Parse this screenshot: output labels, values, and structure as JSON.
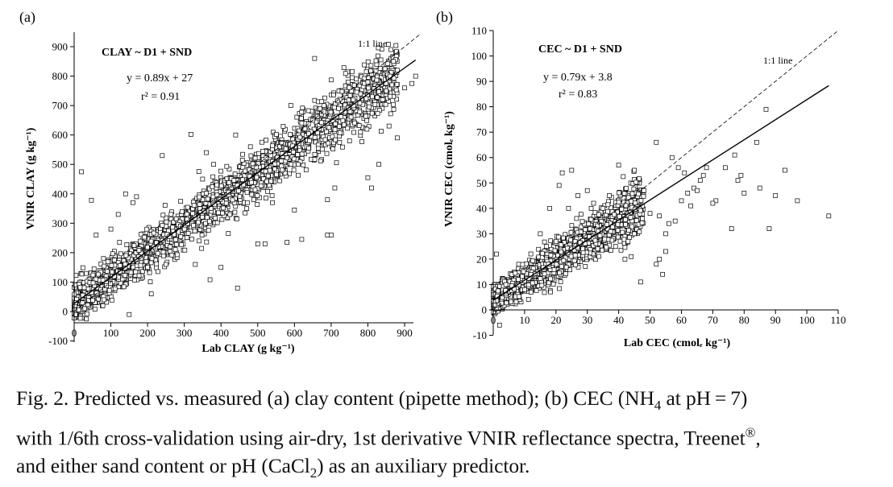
{
  "chart_data": [
    {
      "type": "scatter",
      "panel_label": "(a)",
      "title": "CLAY ~ D1 + SND",
      "xlabel": "Lab CLAY (g kg⁻¹)",
      "ylabel": "VNIR CLAY (g kg⁻¹)",
      "xlim": [
        0,
        940
      ],
      "ylim": [
        -100,
        960
      ],
      "xticks": [
        0,
        100,
        200,
        300,
        400,
        500,
        600,
        700,
        800,
        900
      ],
      "yticks": [
        -100,
        0,
        100,
        200,
        300,
        400,
        500,
        600,
        700,
        800,
        900
      ],
      "equation": "y = 0.89x + 27",
      "r2": "r² = 0.91",
      "fit": {
        "slope": 0.89,
        "intercept": 27,
        "x_range": [
          0,
          930
        ]
      },
      "one_to_one_label": "1:1 line",
      "one_to_one_range": [
        0,
        940
      ],
      "cloud": {
        "x_max": 880,
        "spread": 50,
        "count": 2300
      },
      "outliers": [
        [
          20,
          475
        ],
        [
          47,
          378
        ],
        [
          140,
          400
        ],
        [
          170,
          390
        ],
        [
          160,
          370
        ],
        [
          240,
          530
        ],
        [
          318,
          602
        ],
        [
          360,
          540
        ],
        [
          445,
          80
        ],
        [
          400,
          150
        ],
        [
          330,
          160
        ],
        [
          370,
          108
        ],
        [
          300,
          280
        ],
        [
          260,
          255
        ],
        [
          500,
          230
        ],
        [
          520,
          230
        ],
        [
          580,
          235
        ],
        [
          620,
          245
        ],
        [
          655,
          860
        ],
        [
          690,
          260
        ],
        [
          700,
          260
        ],
        [
          800,
          455
        ],
        [
          810,
          420
        ],
        [
          830,
          500
        ],
        [
          880,
          590
        ],
        [
          900,
          760
        ],
        [
          930,
          800
        ],
        [
          920,
          775
        ],
        [
          870,
          850
        ],
        [
          600,
          345
        ],
        [
          540,
          370
        ],
        [
          610,
          500
        ],
        [
          750,
          580
        ],
        [
          780,
          610
        ],
        [
          840,
          720
        ],
        [
          850,
          750
        ],
        [
          470,
          350
        ],
        [
          420,
          265
        ],
        [
          690,
          380
        ],
        [
          710,
          420
        ],
        [
          60,
          260
        ],
        [
          80,
          180
        ],
        [
          120,
          330
        ],
        [
          100,
          280
        ],
        [
          200,
          150
        ],
        [
          210,
          60
        ],
        [
          150,
          -10
        ],
        [
          250,
          160
        ],
        [
          350,
          450
        ],
        [
          380,
          500
        ],
        [
          440,
          600
        ],
        [
          480,
          560
        ],
        [
          560,
          560
        ],
        [
          590,
          700
        ],
        [
          620,
          640
        ],
        [
          650,
          650
        ],
        [
          680,
          700
        ],
        [
          720,
          690
        ],
        [
          760,
          720
        ],
        [
          800,
          780
        ],
        [
          880,
          820
        ],
        [
          860,
          800
        ]
      ]
    },
    {
      "type": "scatter",
      "panel_label": "(b)",
      "title": "CEC ~ D1 + SND",
      "xlabel": "Lab CEC (cmolₑ kg⁻¹)",
      "ylabel": "VNIR CEC (cmolₑ kg⁻¹)",
      "xlim": [
        0,
        110
      ],
      "ylim": [
        -10,
        110
      ],
      "xticks": [
        0,
        10,
        20,
        30,
        40,
        50,
        60,
        70,
        80,
        90,
        100,
        110
      ],
      "yticks": [
        -10,
        0,
        10,
        20,
        30,
        40,
        50,
        60,
        70,
        80,
        90,
        100,
        110
      ],
      "equation": "y = 0.79x + 3.8",
      "r2": "r² = 0.83",
      "fit": {
        "slope": 0.79,
        "intercept": 3.8,
        "x_range": [
          0,
          107
        ]
      },
      "one_to_one_label": "1:1 line",
      "one_to_one_range": [
        0,
        110
      ],
      "cloud": {
        "x_max": 48,
        "spread": 4.5,
        "count": 1900
      },
      "outliers": [
        [
          107,
          37
        ],
        [
          97,
          43
        ],
        [
          93,
          55
        ],
        [
          90,
          45
        ],
        [
          88,
          32
        ],
        [
          87,
          79
        ],
        [
          85,
          48
        ],
        [
          84,
          66
        ],
        [
          80,
          46
        ],
        [
          79,
          53
        ],
        [
          78,
          51
        ],
        [
          77,
          61
        ],
        [
          76,
          32
        ],
        [
          74,
          56
        ],
        [
          71,
          43
        ],
        [
          70,
          42
        ],
        [
          68,
          56
        ],
        [
          66,
          51
        ],
        [
          64,
          48
        ],
        [
          63,
          41
        ],
        [
          62,
          46
        ],
        [
          61,
          54
        ],
        [
          60,
          43
        ],
        [
          59,
          56
        ],
        [
          57,
          60
        ],
        [
          56,
          34
        ],
        [
          55,
          30
        ],
        [
          55,
          23
        ],
        [
          54,
          14
        ],
        [
          53,
          37
        ],
        [
          53,
          20
        ],
        [
          52,
          18
        ],
        [
          52,
          66
        ],
        [
          50,
          38
        ],
        [
          48,
          47
        ],
        [
          47,
          11
        ],
        [
          45,
          30
        ],
        [
          45,
          55
        ],
        [
          44,
          21
        ],
        [
          43,
          27
        ],
        [
          40,
          57
        ],
        [
          39,
          25
        ],
        [
          32,
          42
        ],
        [
          30,
          47
        ],
        [
          27,
          45
        ],
        [
          25,
          55
        ],
        [
          24,
          40
        ],
        [
          22,
          54
        ],
        [
          21,
          49
        ],
        [
          20,
          27
        ],
        [
          18,
          40
        ],
        [
          15,
          30
        ],
        [
          12,
          14
        ],
        [
          10,
          8
        ],
        [
          8,
          12
        ],
        [
          2,
          -6
        ],
        [
          1,
          22
        ],
        [
          4,
          10
        ],
        [
          35,
          40
        ],
        [
          37,
          45
        ],
        [
          42,
          20
        ],
        [
          65,
          47
        ],
        [
          67,
          53
        ],
        [
          58,
          35
        ]
      ]
    }
  ],
  "caption": {
    "line1_a": "Fig. 2. Predicted vs. measured (a) clay content (pipette method); (b) CEC (NH",
    "line1_sub": "4",
    "line1_b": " at pH = 7)",
    "line2_a": "with 1/6th cross-validation using air-dry, 1st derivative VNIR reflectance spectra, Treenet",
    "line2_sup": "®",
    "line2_b": ",",
    "line3_a": "and either sand content or pH (CaCl",
    "line3_sub": "2",
    "line3_b": ") as an auxiliary predictor."
  }
}
